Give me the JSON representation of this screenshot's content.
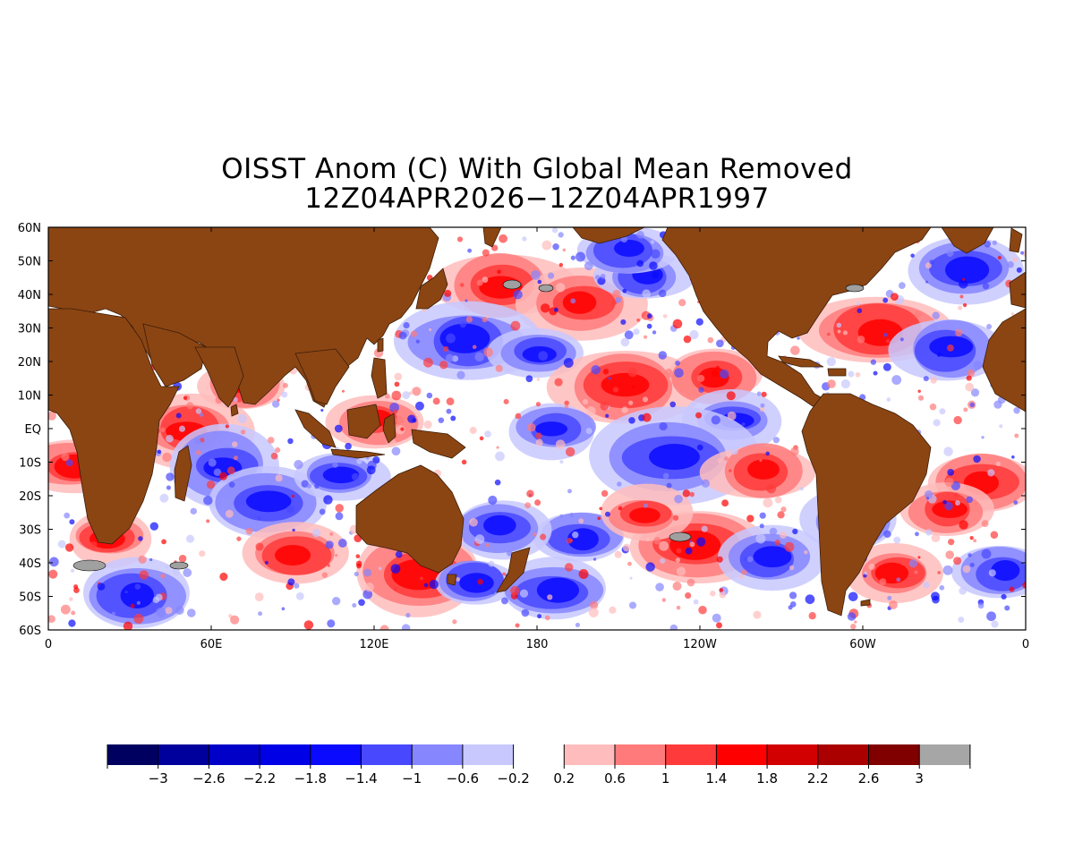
{
  "title": {
    "line1": "OISST Anom (C) With Global Mean Removed",
    "line2": "12Z04APR2026−12Z04APR1997"
  },
  "map": {
    "lat_range": [
      -60,
      60
    ],
    "lon_range": [
      0,
      360
    ],
    "land_color": "#8b4513",
    "ice_color": "#a0a0a0",
    "lat_labels": [
      "60N",
      "50N",
      "40N",
      "30N",
      "20N",
      "10N",
      "EQ",
      "10S",
      "20S",
      "30S",
      "40S",
      "50S",
      "60S"
    ],
    "lon_labels": [
      "0",
      "60E",
      "120E",
      "180",
      "120W",
      "60W",
      "0"
    ]
  },
  "colorbar": {
    "labels": [
      "−3",
      "−2.6",
      "−2.2",
      "−1.8",
      "−1.4",
      "−1",
      "−0.6",
      "−0.2",
      "0.2",
      "0.6",
      "1",
      "1.4",
      "1.8",
      "2.2",
      "2.6",
      "3"
    ],
    "colors_cold": [
      "#000060",
      "#00009c",
      "#0000c8",
      "#0000e6",
      "#0a0aff",
      "#4848ff",
      "#8686ff",
      "#c8c8ff"
    ],
    "colors_warm": [
      "#ffbcbc",
      "#ff7b7b",
      "#ff3a3a",
      "#ff0000",
      "#d20000",
      "#aa0000",
      "#800000",
      "#a6a6a6"
    ]
  }
}
